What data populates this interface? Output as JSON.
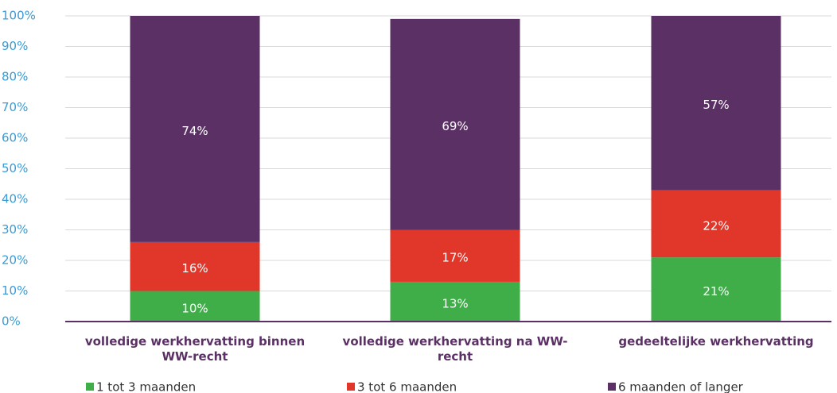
{
  "chart_data": {
    "type": "stacked_bar",
    "categories": [
      "volledige werkhervatting binnen WW-recht",
      "volledige werkhervatting na WW-recht",
      "gedeeltelijke werkhervatting"
    ],
    "series": [
      {
        "name": "1 tot 3 maanden",
        "color": "#3fae49",
        "values": [
          10,
          13,
          21
        ],
        "value_labels": [
          "10%",
          "13%",
          "21%"
        ]
      },
      {
        "name": "3 tot 6 maanden",
        "color": "#e1362a",
        "values": [
          16,
          17,
          22
        ],
        "value_labels": [
          "16%",
          "17%",
          "22%"
        ]
      },
      {
        "name": "6 maanden of langer",
        "color": "#5b3165",
        "values": [
          74,
          69,
          57
        ],
        "value_labels": [
          "74%",
          "69%",
          "57%"
        ]
      }
    ],
    "ylim": [
      0,
      100
    ],
    "yticks": [
      {
        "value": 0,
        "label": "0%"
      },
      {
        "value": 10,
        "label": "10%"
      },
      {
        "value": 20,
        "label": "20%"
      },
      {
        "value": 30,
        "label": "30%"
      },
      {
        "value": 40,
        "label": "40%"
      },
      {
        "value": 50,
        "label": "50%"
      },
      {
        "value": 60,
        "label": "60%"
      },
      {
        "value": 70,
        "label": "70%"
      },
      {
        "value": 80,
        "label": "80%"
      },
      {
        "value": 90,
        "label": "90%"
      },
      {
        "value": 100,
        "label": "100%"
      }
    ],
    "grid": true,
    "legend": "bottom"
  }
}
